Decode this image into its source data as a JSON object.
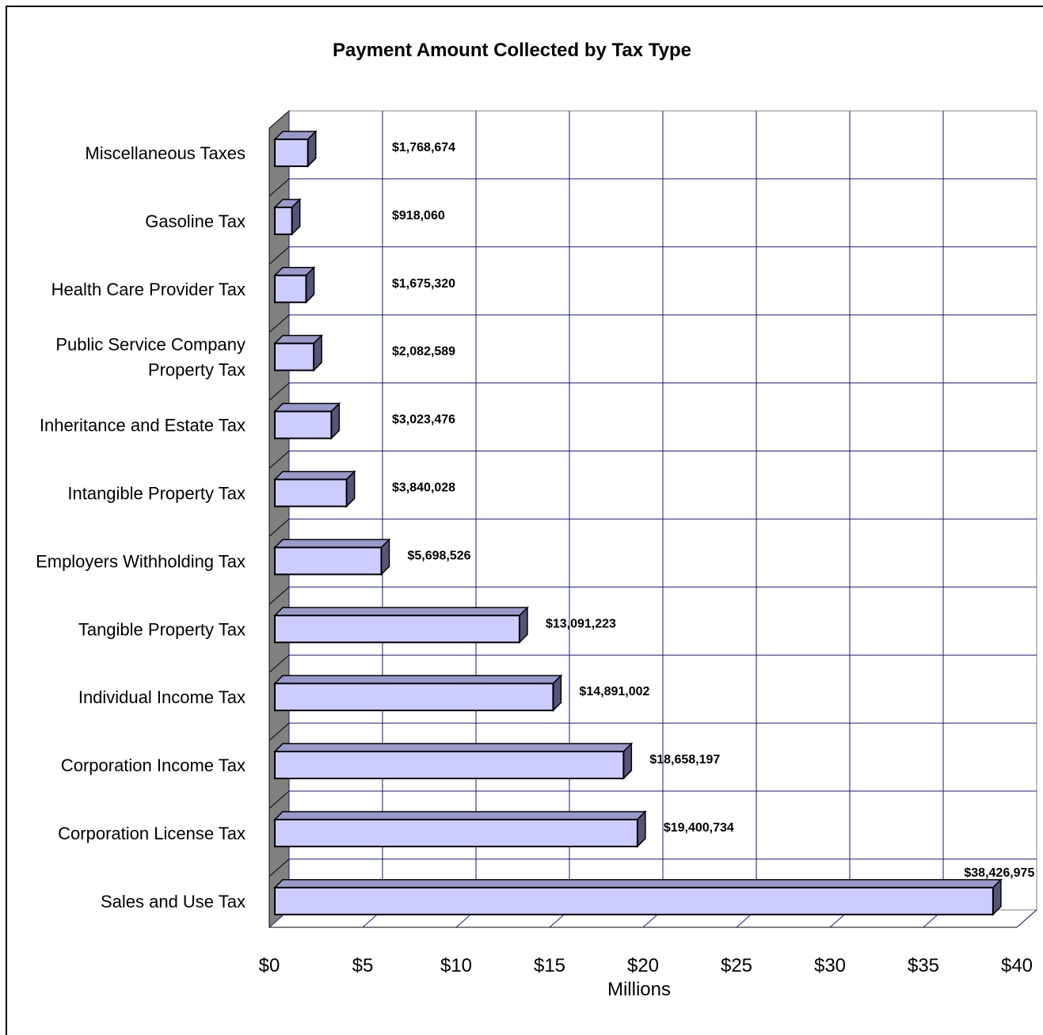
{
  "chart_data": {
    "type": "bar",
    "orientation": "horizontal",
    "title": "Payment Amount Collected by Tax Type",
    "xlabel": "Millions",
    "ylabel": "",
    "xlim": [
      0,
      40
    ],
    "x_ticks": [
      0,
      5,
      10,
      15,
      20,
      25,
      30,
      35,
      40
    ],
    "x_tick_labels": [
      "$0",
      "$5",
      "$10",
      "$15",
      "$20",
      "$25",
      "$30",
      "$35",
      "$40"
    ],
    "grid": true,
    "colors": {
      "bar_face": "#ccccff",
      "bar_top": "#9999cc",
      "bar_side": "#555577",
      "grid": "#1a1a80",
      "wall": "#808080"
    },
    "categories": [
      [
        "Miscellaneous Taxes"
      ],
      [
        "Gasoline Tax"
      ],
      [
        "Health Care Provider Tax"
      ],
      [
        "Public Service Company",
        "Property Tax"
      ],
      [
        "Inheritance and Estate Tax"
      ],
      [
        "Intangible Property Tax"
      ],
      [
        "Employers Withholding Tax"
      ],
      [
        "Tangible Property Tax"
      ],
      [
        "Individual Income Tax"
      ],
      [
        "Corporation Income Tax"
      ],
      [
        "Corporation License Tax"
      ],
      [
        "Sales and Use Tax"
      ]
    ],
    "values": [
      1.768674,
      0.91806,
      1.67532,
      2.082589,
      3.023476,
      3.840028,
      5.698526,
      13.091223,
      14.891002,
      18.658197,
      19.400734,
      38.426975
    ],
    "value_labels": [
      "$1,768,674",
      "$918,060",
      "$1,675,320",
      "$2,082,589",
      "$3,023,476",
      "$3,840,028",
      "$5,698,526",
      "$13,091,223",
      "$14,891,002",
      "$18,658,197",
      "$19,400,734",
      "$38,426,975"
    ]
  }
}
